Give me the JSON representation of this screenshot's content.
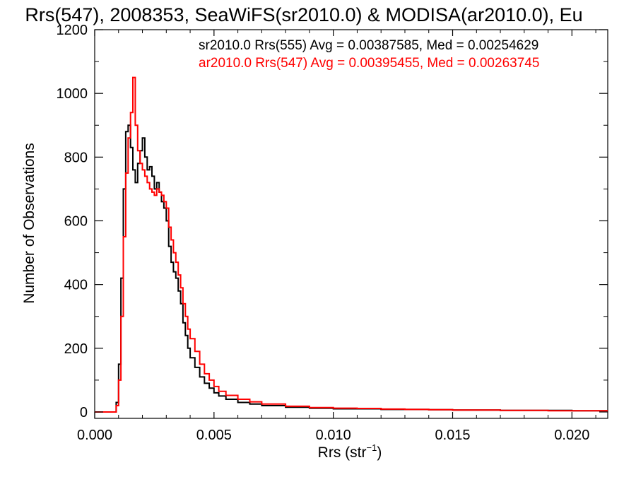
{
  "chart_data": {
    "type": "line",
    "title": "Rrs(547), 2008353, SeaWiFS(sr2010.0) & MODISA(ar2010.0), Eu",
    "xlabel": "Rrs (str",
    "xlabel_sup": "−1",
    "xlabel_end": ")",
    "ylabel": "Number of Observations",
    "xlim": [
      0.0,
      0.0215
    ],
    "ylim": [
      -20,
      1200
    ],
    "x_ticks": [
      0.0,
      0.005,
      0.01,
      0.015,
      0.02
    ],
    "x_tick_labels": [
      "0.000",
      "0.005",
      "0.010",
      "0.015",
      "0.020"
    ],
    "y_ticks": [
      0,
      200,
      400,
      600,
      800,
      1000,
      1200
    ],
    "y_tick_labels": [
      "0",
      "200",
      "400",
      "600",
      "800",
      "1000",
      "1200"
    ],
    "grid": false,
    "legend_placement": "top-right",
    "series": [
      {
        "name": "sr2010.0 Rrs(555) Avg = 0.00387585, Med = 0.00254629",
        "color": "#000000",
        "x": [
          0.0,
          0.0008,
          0.0009,
          0.001,
          0.0011,
          0.0012,
          0.0013,
          0.0014,
          0.0015,
          0.0016,
          0.0017,
          0.0018,
          0.0019,
          0.002,
          0.0021,
          0.0022,
          0.0023,
          0.0024,
          0.0025,
          0.0026,
          0.0027,
          0.0028,
          0.0029,
          0.003,
          0.0031,
          0.0032,
          0.0033,
          0.0034,
          0.0035,
          0.0036,
          0.0037,
          0.0038,
          0.0039,
          0.004,
          0.0042,
          0.0044,
          0.0046,
          0.0048,
          0.005,
          0.0052,
          0.0055,
          0.006,
          0.0065,
          0.007,
          0.008,
          0.009,
          0.01,
          0.011,
          0.012,
          0.013,
          0.014,
          0.015,
          0.016,
          0.017,
          0.018,
          0.019,
          0.02,
          0.021
        ],
        "y": [
          0,
          0,
          30,
          150,
          420,
          700,
          880,
          900,
          830,
          760,
          720,
          780,
          820,
          860,
          800,
          760,
          770,
          740,
          700,
          720,
          690,
          660,
          640,
          600,
          520,
          470,
          440,
          420,
          380,
          340,
          280,
          240,
          200,
          170,
          140,
          110,
          90,
          75,
          60,
          50,
          40,
          30,
          25,
          20,
          15,
          12,
          10,
          10,
          8,
          8,
          7,
          6,
          6,
          5,
          5,
          5,
          4,
          4
        ]
      },
      {
        "name": "ar2010.0 Rrs(547) Avg = 0.00395455, Med = 0.00263745",
        "color": "#ff0000",
        "x": [
          0.0,
          0.0008,
          0.0009,
          0.001,
          0.0011,
          0.0012,
          0.0013,
          0.0014,
          0.0015,
          0.0016,
          0.0017,
          0.0018,
          0.0019,
          0.002,
          0.0021,
          0.0022,
          0.0023,
          0.0024,
          0.0025,
          0.0026,
          0.0027,
          0.0028,
          0.0029,
          0.003,
          0.0031,
          0.0032,
          0.0033,
          0.0034,
          0.0035,
          0.0036,
          0.0037,
          0.0038,
          0.0039,
          0.004,
          0.0042,
          0.0044,
          0.0046,
          0.0048,
          0.005,
          0.0052,
          0.0055,
          0.006,
          0.0065,
          0.007,
          0.008,
          0.009,
          0.01,
          0.011,
          0.012,
          0.013,
          0.014,
          0.015,
          0.016,
          0.017,
          0.018,
          0.019,
          0.02,
          0.021
        ],
        "y": [
          0,
          0,
          20,
          100,
          300,
          550,
          750,
          860,
          940,
          1050,
          900,
          820,
          780,
          760,
          740,
          720,
          700,
          690,
          680,
          700,
          690,
          680,
          660,
          640,
          580,
          540,
          500,
          470,
          430,
          390,
          340,
          300,
          260,
          230,
          190,
          150,
          120,
          100,
          80,
          65,
          52,
          40,
          32,
          25,
          18,
          14,
          12,
          11,
          9,
          8,
          7,
          6,
          6,
          5,
          5,
          4,
          4,
          4
        ]
      }
    ]
  }
}
